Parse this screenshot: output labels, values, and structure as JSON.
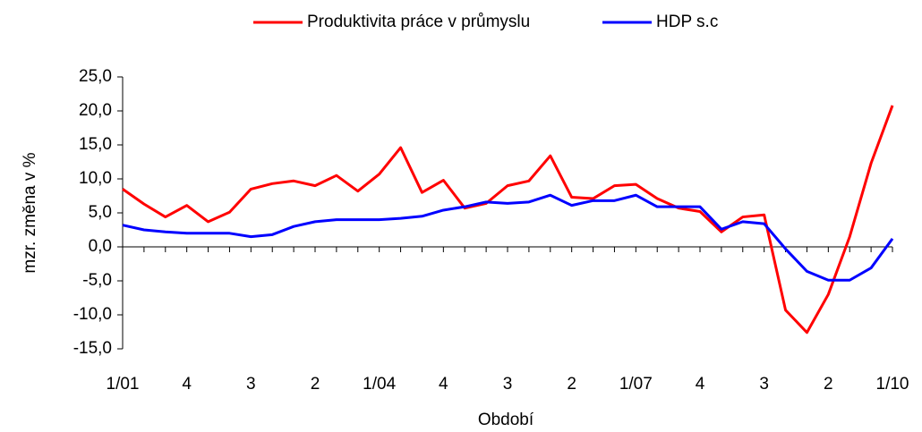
{
  "chart_data": {
    "type": "line",
    "x_label": "Období",
    "y_label": "mzr. změna v %",
    "categories": [
      "1/01",
      null,
      null,
      "4",
      null,
      null,
      "3",
      null,
      null,
      "2",
      null,
      null,
      "1/04",
      null,
      null,
      "4",
      null,
      null,
      "3",
      null,
      null,
      "2",
      null,
      null,
      "1/07",
      null,
      null,
      "4",
      null,
      null,
      "3",
      null,
      null,
      "2",
      null,
      null,
      "1/10"
    ],
    "series": [
      {
        "name": "Produktivita práce v průmyslu",
        "color": "#ff0000",
        "values": [
          8.5,
          6.3,
          4.4,
          6.1,
          3.7,
          5.1,
          8.5,
          9.3,
          9.7,
          9.0,
          10.5,
          8.2,
          10.7,
          14.6,
          8.0,
          9.8,
          5.7,
          6.4,
          9.0,
          9.7,
          13.4,
          7.3,
          7.1,
          9.0,
          9.2,
          7.1,
          5.7,
          5.2,
          2.2,
          4.4,
          4.7,
          -9.3,
          -12.6,
          -7.0,
          1.5,
          12.3,
          20.8
        ]
      },
      {
        "name": "HDP s.c",
        "color": "#0000ff",
        "values": [
          3.2,
          2.5,
          2.2,
          2.0,
          2.0,
          2.0,
          1.5,
          1.8,
          3.0,
          3.7,
          4.0,
          4.0,
          4.0,
          4.2,
          4.5,
          5.4,
          5.9,
          6.6,
          6.4,
          6.6,
          7.6,
          6.1,
          6.8,
          6.8,
          7.6,
          5.9,
          5.9,
          5.9,
          2.6,
          3.7,
          3.4,
          -0.3,
          -3.6,
          -4.9,
          -4.9,
          -3.1,
          1.2
        ]
      }
    ],
    "ylim": [
      -15,
      25
    ],
    "yticks": [
      {
        "value": -15,
        "label": "-15,0"
      },
      {
        "value": -10,
        "label": "-10,0"
      },
      {
        "value": -5,
        "label": "-5,0"
      },
      {
        "value": 0,
        "label": "0,0"
      },
      {
        "value": 5,
        "label": "5,0"
      },
      {
        "value": 10,
        "label": "10,0"
      },
      {
        "value": 15,
        "label": "15,0"
      },
      {
        "value": 20,
        "label": "20,0"
      },
      {
        "value": 25,
        "label": "25,0"
      }
    ],
    "legend": "top"
  }
}
